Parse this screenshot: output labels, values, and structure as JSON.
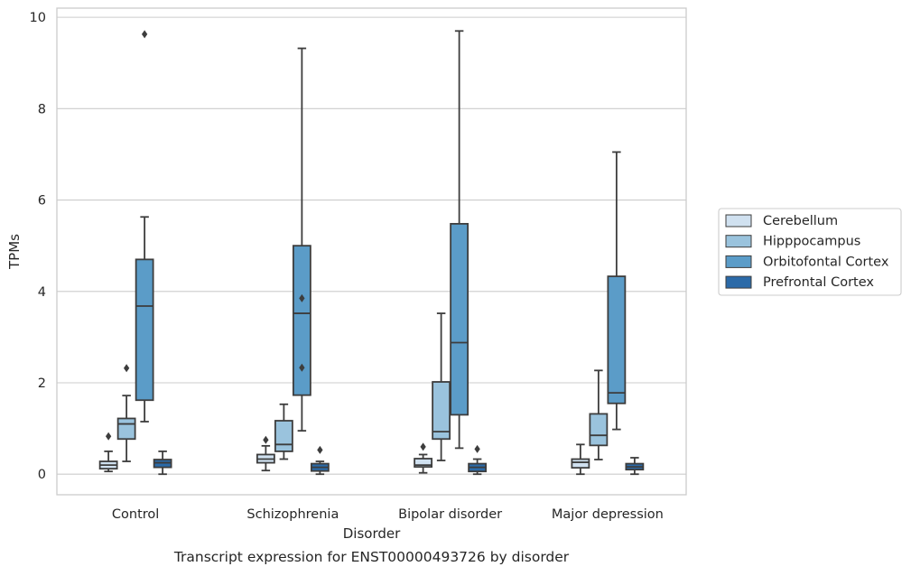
{
  "chart_data": {
    "type": "box",
    "title": "",
    "caption": "Transcript expression for ENST00000493726 by disorder",
    "xlabel": "Disorder",
    "ylabel": "TPMs",
    "ylim": [
      -0.45,
      10.2
    ],
    "yticks": [
      0,
      2,
      4,
      6,
      8,
      10
    ],
    "grid": "horizontal",
    "legend_position": "right-center",
    "categories": [
      "Control",
      "Schizophrenia",
      "Bipolar disorder",
      "Major depression"
    ],
    "series": [
      {
        "name": "Cerebellum",
        "color": "#d0e1f0",
        "boxes": [
          {
            "q1": 0.12,
            "median": 0.2,
            "q3": 0.28,
            "whislo": 0.06,
            "whishi": 0.5,
            "fliers": [
              0.83
            ]
          },
          {
            "q1": 0.25,
            "median": 0.33,
            "q3": 0.43,
            "whislo": 0.08,
            "whishi": 0.62,
            "fliers": [
              0.75
            ]
          },
          {
            "q1": 0.16,
            "median": 0.2,
            "q3": 0.34,
            "whislo": 0.03,
            "whishi": 0.43,
            "fliers": [
              0.6
            ]
          },
          {
            "q1": 0.14,
            "median": 0.26,
            "q3": 0.33,
            "whislo": 0.0,
            "whishi": 0.65,
            "fliers": []
          }
        ]
      },
      {
        "name": "Hipppocampus",
        "color": "#9ac3dd",
        "boxes": [
          {
            "q1": 0.77,
            "median": 1.1,
            "q3": 1.22,
            "whislo": 0.28,
            "whishi": 1.72,
            "fliers": [
              2.32
            ]
          },
          {
            "q1": 0.5,
            "median": 0.65,
            "q3": 1.17,
            "whislo": 0.33,
            "whishi": 1.53,
            "fliers": []
          },
          {
            "q1": 0.77,
            "median": 0.93,
            "q3": 2.02,
            "whislo": 0.3,
            "whishi": 3.52,
            "fliers": []
          },
          {
            "q1": 0.63,
            "median": 0.85,
            "q3": 1.32,
            "whislo": 0.32,
            "whishi": 2.27,
            "fliers": []
          }
        ]
      },
      {
        "name": "Orbitofontal Cortex",
        "color": "#5b9cc8",
        "boxes": [
          {
            "q1": 1.62,
            "median": 3.68,
            "q3": 4.7,
            "whislo": 1.15,
            "whishi": 5.63,
            "fliers": [
              9.63
            ]
          },
          {
            "q1": 1.73,
            "median": 3.52,
            "q3": 5.0,
            "whislo": 0.95,
            "whishi": 9.32,
            "fliers": [
              3.85,
              2.33
            ]
          },
          {
            "q1": 1.3,
            "median": 2.88,
            "q3": 5.48,
            "whislo": 0.57,
            "whishi": 9.7,
            "fliers": []
          },
          {
            "q1": 1.55,
            "median": 1.78,
            "q3": 4.33,
            "whislo": 0.98,
            "whishi": 7.05,
            "fliers": []
          }
        ]
      },
      {
        "name": "Prefrontal Cortex",
        "color": "#2b6aa8",
        "boxes": [
          {
            "q1": 0.15,
            "median": 0.25,
            "q3": 0.32,
            "whislo": 0.0,
            "whishi": 0.5,
            "fliers": []
          },
          {
            "q1": 0.07,
            "median": 0.15,
            "q3": 0.23,
            "whislo": 0.0,
            "whishi": 0.28,
            "fliers": [
              0.53
            ]
          },
          {
            "q1": 0.06,
            "median": 0.15,
            "q3": 0.23,
            "whislo": 0.0,
            "whishi": 0.33,
            "fliers": [
              0.55
            ]
          },
          {
            "q1": 0.1,
            "median": 0.16,
            "q3": 0.23,
            "whislo": 0.0,
            "whishi": 0.36,
            "fliers": []
          }
        ]
      }
    ]
  }
}
